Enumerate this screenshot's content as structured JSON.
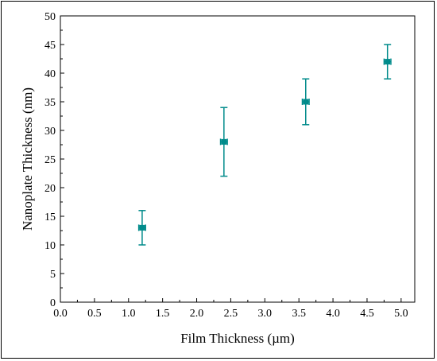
{
  "chart_data": {
    "type": "scatter",
    "xlabel": "Film Thickness (µm)",
    "ylabel": "Nanoplate Thickness (nm)",
    "xlim": [
      0.0,
      5.2
    ],
    "ylim": [
      0,
      50
    ],
    "x_ticks": [
      "0.0",
      "0.5",
      "1.0",
      "1.5",
      "2.0",
      "2.5",
      "3.0",
      "3.5",
      "4.0",
      "4.5",
      "5.0"
    ],
    "y_ticks": [
      "0",
      "5",
      "10",
      "15",
      "20",
      "25",
      "30",
      "35",
      "40",
      "45",
      "50"
    ],
    "grid": false,
    "legend": "none",
    "series": [
      {
        "color": "#008b8b",
        "x": [
          1.2,
          2.4,
          3.6,
          4.8
        ],
        "y": [
          13,
          28,
          35,
          42
        ],
        "y_err_low": [
          10,
          22,
          31,
          39
        ],
        "y_err_high": [
          16,
          34,
          39,
          45
        ],
        "x_err": [
          0.05,
          0.05,
          0.05,
          0.05
        ]
      }
    ]
  }
}
